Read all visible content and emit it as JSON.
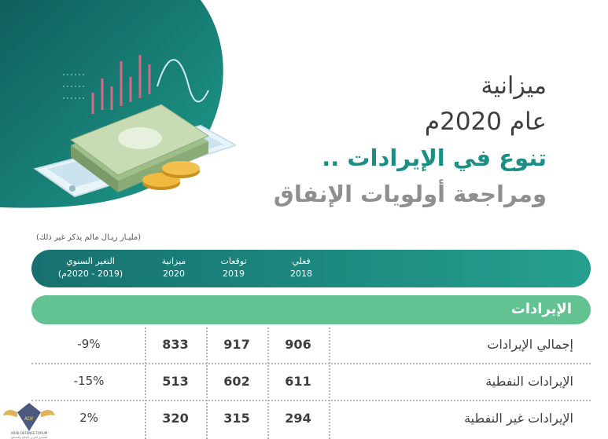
{
  "title": {
    "line1": "ميزانية",
    "line2": "عام 2020م",
    "line3": "تنوع في الإيرادات ..",
    "line4": "ومراجعة أولويات الإنفاق"
  },
  "unit_note": "(مليـار ريـال مالم يذكر غير ذلك)",
  "header": {
    "actual": [
      "فعلي",
      "2018"
    ],
    "expected": [
      "توقعات",
      "2019"
    ],
    "budget": [
      "ميزانية",
      "2020"
    ],
    "change": [
      "التغير السنوي",
      "(2019 - 2020م)"
    ]
  },
  "section": "الإيرادات",
  "rows": [
    {
      "label": "إجمالي الإيرادات",
      "actual": "906",
      "expected": "917",
      "budget": "833",
      "change": "-9%"
    },
    {
      "label": "الإيرادات النفطية",
      "actual": "611",
      "expected": "602",
      "budget": "513",
      "change": "-15%"
    },
    {
      "label": "الإيرادات غير النفطية",
      "actual": "294",
      "expected": "315",
      "budget": "320",
      "change": "2%"
    }
  ],
  "watermark": {
    "text1": "ARAB DEFENSE FORUM",
    "text2": "المنتدى العربي للدفاع والتسليح"
  },
  "colors": {
    "teal_dark": "#17706f",
    "teal": "#1b8f84",
    "green": "#62c292",
    "money": "#b8cfa4",
    "coin": "#e9b33b"
  }
}
